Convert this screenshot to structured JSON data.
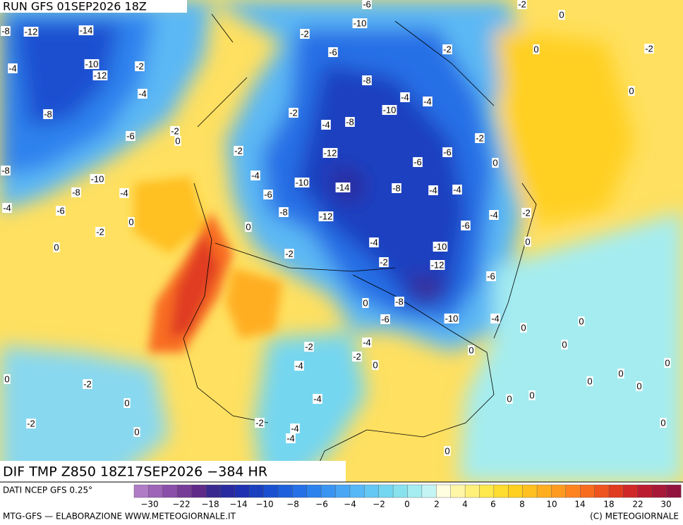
{
  "header": {
    "run": "RUN GFS 01SEP2026 18Z"
  },
  "footer": {
    "title": "DIF TMP Z850 18Z17SEP2026 −384 HR",
    "source": "DATI NCEP GFS 0.25°",
    "credit": "MTG-GFS — ELABORAZIONE WWW.METEOGIORNALE.IT",
    "copyright": "(C) METEOGIORNALE"
  },
  "colorbar": {
    "ticks": [
      "−30",
      "−22",
      "−18",
      "−14",
      "−10",
      "−8",
      "−6",
      "−4",
      "−2",
      "0",
      "2",
      "4",
      "6",
      "8",
      "10",
      "14",
      "18",
      "22",
      "30"
    ],
    "colors": [
      "#b07cc6",
      "#9d64b8",
      "#8a4fa8",
      "#763c98",
      "#5f2a88",
      "#3a2a90",
      "#2a2aa0",
      "#1f30b0",
      "#1a40c0",
      "#1a50d0",
      "#1e5fdc",
      "#2570e6",
      "#2e82ee",
      "#3a94f2",
      "#48a6f5",
      "#56b8f7",
      "#64c8f5",
      "#74d6f0",
      "#88e2ee",
      "#a4ecf0",
      "#c4f4f4",
      "#fffde0",
      "#fff6a8",
      "#fff07a",
      "#ffe84c",
      "#ffdc30",
      "#ffd020",
      "#ffc020",
      "#ffae20",
      "#ff9a20",
      "#ff8420",
      "#f86c20",
      "#ee5420",
      "#e03c20",
      "#d02828",
      "#bc1c30",
      "#a81838",
      "#941440"
    ]
  },
  "map": {
    "contour_labels": [
      "-8",
      "-12",
      "-14",
      "-4",
      "-10",
      "-12",
      "-2",
      "-4",
      "-8",
      "-6",
      "-2",
      "-8",
      "-10",
      "-8",
      "-4",
      "-4",
      "-6",
      "-2",
      "0",
      "0",
      "-2",
      "-4",
      "-6",
      "-8",
      "-10",
      "-14",
      "-12",
      "-12",
      "-8",
      "-4",
      "-2",
      "-8",
      "-10",
      "-4",
      "-4",
      "-6",
      "-6",
      "-8",
      "-4",
      "-4",
      "-2",
      "-4",
      "-2",
      "-6",
      "-10",
      "-12",
      "-6",
      "-8",
      "-6",
      "-10",
      "-4",
      "-4",
      "-2",
      "-2",
      "-4",
      "-4",
      "-2",
      "-4",
      "-4",
      "-2",
      "-2",
      "0",
      "0",
      "0",
      "0",
      "0",
      "-2",
      "-2",
      "-4",
      "-6",
      "-10",
      "-6",
      "-2",
      "-2",
      "-2",
      "0",
      "0",
      "-2",
      "0",
      "0",
      "0",
      "0",
      "0",
      "0",
      "0",
      "0",
      "0",
      "0",
      "0",
      "0",
      "0",
      "0",
      "0",
      "0",
      "0"
    ]
  }
}
